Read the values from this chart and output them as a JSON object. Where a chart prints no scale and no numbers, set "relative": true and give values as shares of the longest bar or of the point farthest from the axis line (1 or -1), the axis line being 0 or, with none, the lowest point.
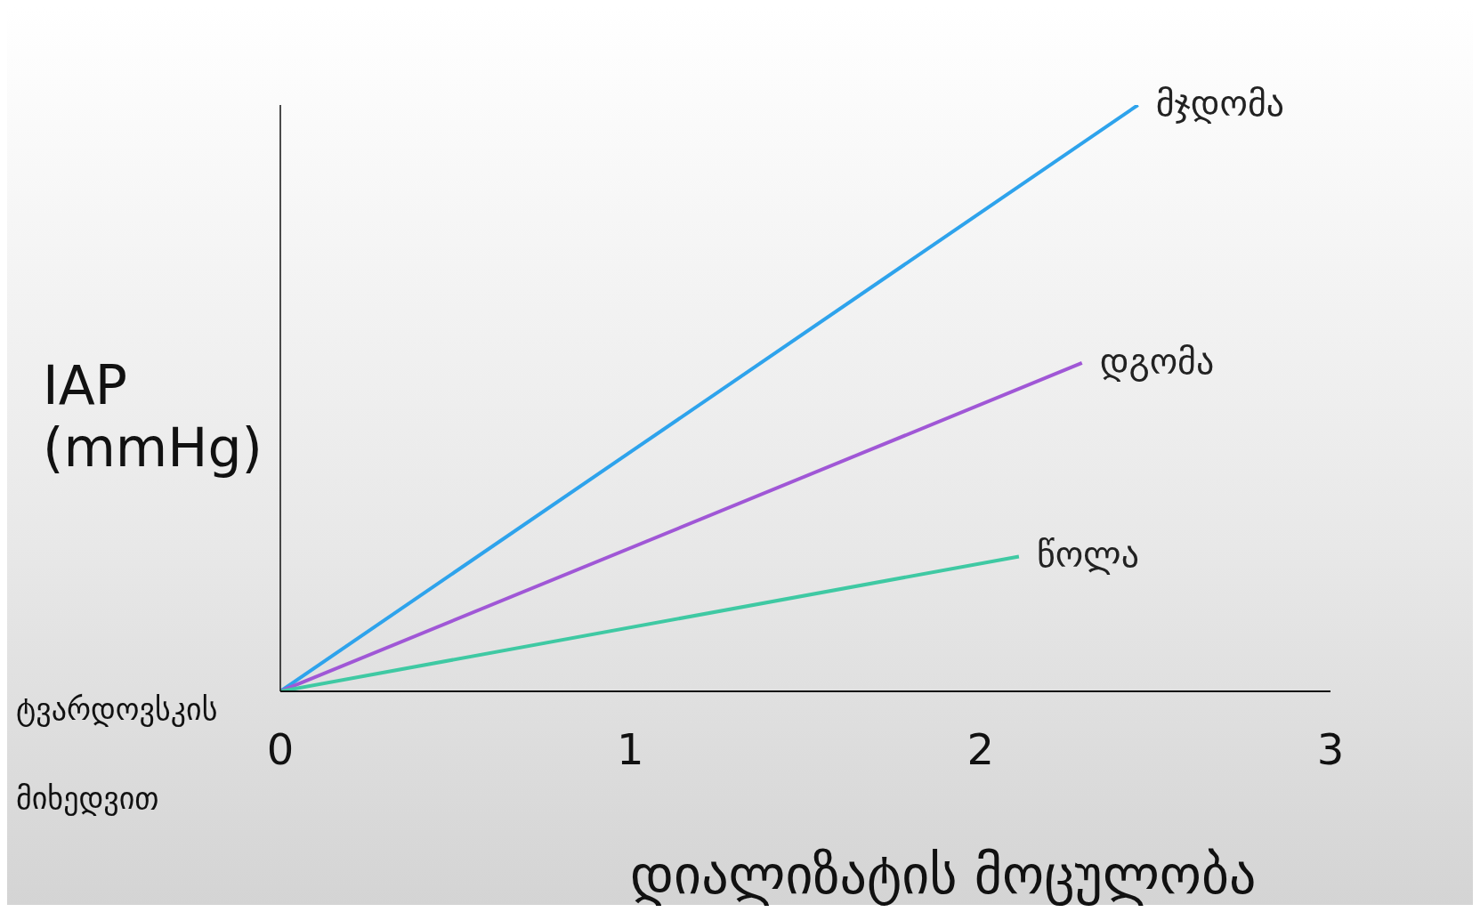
{
  "chart_data": {
    "type": "line",
    "relative": true,
    "ylabel": "IAP (mmHg)",
    "xlabel": "დიალიზატის მოცულობა",
    "annotations": [
      "ტვარდოვსკის მიხედვით"
    ],
    "xlim": [
      0,
      3
    ],
    "xticks": [
      0,
      1,
      2,
      3
    ],
    "grid": false,
    "legend": false,
    "marker": "none",
    "line_style": "solid",
    "series": [
      {
        "name": "მჯდომა",
        "color": "#2ea3ec",
        "x": [
          0,
          2.45
        ],
        "values": [
          0,
          1
        ]
      },
      {
        "name": "დგომა",
        "color": "#a057d6",
        "x": [
          0,
          2.29
        ],
        "values": [
          0,
          0.56
        ]
      },
      {
        "name": "წოლა",
        "color": "#3fc9a3",
        "x": [
          0,
          2.11
        ],
        "values": [
          0,
          0.23
        ]
      }
    ]
  }
}
